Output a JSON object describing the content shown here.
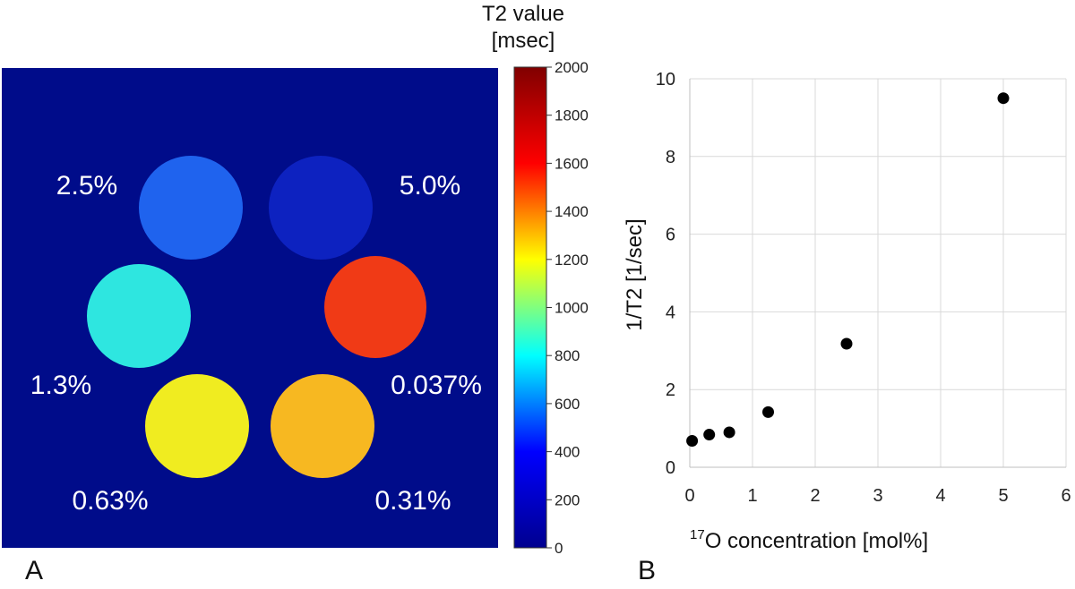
{
  "panels": {
    "a_label": "A",
    "b_label": "B"
  },
  "colorbar": {
    "title_line1": "T2 value",
    "title_line2": "[msec]",
    "min": 0,
    "max": 2000,
    "ticks": [
      "0",
      "200",
      "400",
      "600",
      "800",
      "1000",
      "1200",
      "1400",
      "1600",
      "1800",
      "2000"
    ],
    "colormap": [
      "#00008f",
      "#0000ff",
      "#00ffff",
      "#ffff00",
      "#ff0000",
      "#800000"
    ]
  },
  "phantom": {
    "background_color": "#000c8a",
    "samples": [
      {
        "label": "2.5%",
        "color": "#1f63ee"
      },
      {
        "label": "5.0%",
        "color": "#0d22c0"
      },
      {
        "label": "1.3%",
        "color": "#2ee6e0"
      },
      {
        "label": "0.037%",
        "color": "#f03a16"
      },
      {
        "label": "0.63%",
        "color": "#f0ec20"
      },
      {
        "label": "0.31%",
        "color": "#f7b821"
      }
    ]
  },
  "chart_data": {
    "type": "scatter",
    "title": "",
    "xlabel_sup": "17",
    "xlabel_rest": "O concentration [mol%]",
    "ylabel": "1/T2 [1/sec]",
    "xlim": [
      0,
      6
    ],
    "ylim": [
      0,
      10
    ],
    "x_ticks": [
      "0",
      "1",
      "2",
      "3",
      "4",
      "5",
      "6"
    ],
    "y_ticks": [
      "0",
      "2",
      "4",
      "6",
      "8",
      "10"
    ],
    "grid": true,
    "series": [
      {
        "name": "1/T2",
        "x": [
          0.037,
          0.31,
          0.63,
          1.25,
          2.5,
          5.0
        ],
        "y": [
          0.68,
          0.84,
          0.9,
          1.42,
          3.18,
          9.5
        ]
      }
    ]
  }
}
